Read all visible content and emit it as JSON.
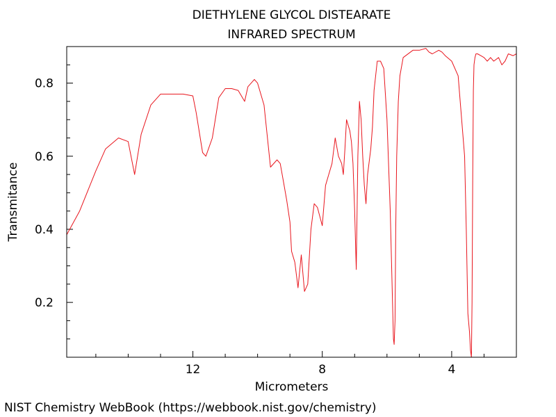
{
  "chart_data": {
    "type": "line",
    "title": "DIETHYLENE GLYCOL DISTEARATE",
    "subtitle": "INFRARED SPECTRUM",
    "xlabel": "Micrometers",
    "ylabel": "Transmitance",
    "xlim": [
      15.9,
      2.0
    ],
    "ylim": [
      0.05,
      0.9
    ],
    "x_reversed": true,
    "grid": false,
    "x_ticks": [
      12,
      8,
      4
    ],
    "y_ticks": [
      0.2,
      0.4,
      0.6,
      0.8
    ],
    "series": [
      {
        "color": "#e8141c",
        "x": [
          15.9,
          15.5,
          15.0,
          14.7,
          14.3,
          14.0,
          13.8,
          13.6,
          13.3,
          13.0,
          12.8,
          12.6,
          12.3,
          12.0,
          11.9,
          11.7,
          11.6,
          11.4,
          11.2,
          11.0,
          10.8,
          10.6,
          10.4,
          10.3,
          10.1,
          10.0,
          9.8,
          9.6,
          9.4,
          9.3,
          9.2,
          9.1,
          9.0,
          8.95,
          8.85,
          8.75,
          8.65,
          8.55,
          8.45,
          8.35,
          8.25,
          8.15,
          8.0,
          7.9,
          7.8,
          7.7,
          7.6,
          7.5,
          7.4,
          7.35,
          7.3,
          7.25,
          7.15,
          7.1,
          7.05,
          7.0,
          6.95,
          6.9,
          6.85,
          6.8,
          6.75,
          6.7,
          6.65,
          6.6,
          6.5,
          6.45,
          6.4,
          6.3,
          6.2,
          6.1,
          6.0,
          5.9,
          5.8,
          5.78,
          5.75,
          5.73,
          5.7,
          5.65,
          5.6,
          5.5,
          5.2,
          5.0,
          4.8,
          4.7,
          4.6,
          4.4,
          4.3,
          4.2,
          4.0,
          3.8,
          3.6,
          3.55,
          3.5,
          3.45,
          3.42,
          3.39,
          3.37,
          3.35,
          3.33,
          3.31,
          3.28,
          3.25,
          3.2,
          3.1,
          3.0,
          2.9,
          2.8,
          2.7,
          2.55,
          2.45,
          2.35,
          2.25,
          2.1,
          2.0
        ],
        "values": [
          0.385,
          0.45,
          0.56,
          0.62,
          0.65,
          0.64,
          0.55,
          0.66,
          0.74,
          0.77,
          0.77,
          0.77,
          0.77,
          0.765,
          0.72,
          0.61,
          0.6,
          0.65,
          0.76,
          0.785,
          0.785,
          0.78,
          0.75,
          0.79,
          0.81,
          0.8,
          0.74,
          0.57,
          0.59,
          0.58,
          0.53,
          0.48,
          0.42,
          0.34,
          0.31,
          0.24,
          0.33,
          0.23,
          0.25,
          0.4,
          0.47,
          0.46,
          0.41,
          0.52,
          0.55,
          0.58,
          0.65,
          0.6,
          0.58,
          0.55,
          0.62,
          0.7,
          0.67,
          0.64,
          0.58,
          0.45,
          0.29,
          0.6,
          0.75,
          0.7,
          0.6,
          0.52,
          0.47,
          0.55,
          0.62,
          0.68,
          0.78,
          0.86,
          0.86,
          0.84,
          0.7,
          0.45,
          0.1,
          0.085,
          0.15,
          0.4,
          0.6,
          0.75,
          0.82,
          0.87,
          0.89,
          0.89,
          0.895,
          0.885,
          0.88,
          0.89,
          0.885,
          0.875,
          0.86,
          0.82,
          0.6,
          0.4,
          0.17,
          0.12,
          0.07,
          0.05,
          0.2,
          0.55,
          0.78,
          0.85,
          0.87,
          0.88,
          0.88,
          0.875,
          0.87,
          0.86,
          0.87,
          0.86,
          0.87,
          0.85,
          0.86,
          0.88,
          0.875,
          0.88
        ]
      }
    ]
  },
  "footer": "NIST Chemistry WebBook (https://webbook.nist.gov/chemistry)"
}
